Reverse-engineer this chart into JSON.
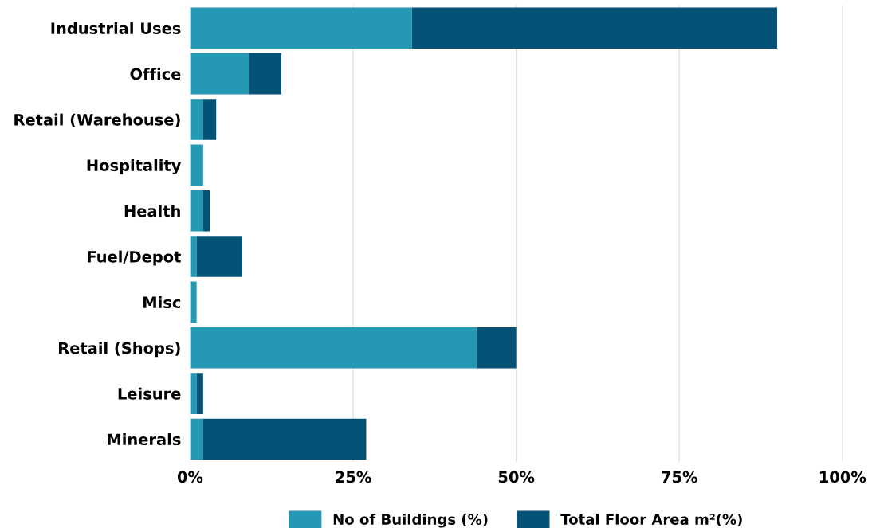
{
  "chart_data": {
    "type": "bar",
    "orientation": "horizontal",
    "stacked": true,
    "categories": [
      "Industrial Uses",
      "Office",
      "Retail (Warehouse)",
      "Hospitality",
      "Health",
      "Fuel/Depot",
      "Misc",
      "Retail (Shops)",
      "Leisure",
      "Minerals"
    ],
    "series": [
      {
        "name": "No of Buildings (%)",
        "color": "#2598b3",
        "values": [
          34,
          9,
          2,
          2,
          2,
          1,
          1,
          44,
          1,
          2
        ]
      },
      {
        "name": "Total Floor Area m²(%)",
        "color": "#045377",
        "values": [
          56,
          5,
          2,
          0,
          1,
          7,
          0,
          6,
          1,
          25
        ]
      }
    ],
    "xlim": [
      0,
      100
    ],
    "xticks": [
      {
        "value": 0,
        "label": "0%"
      },
      {
        "value": 25,
        "label": "25%"
      },
      {
        "value": 50,
        "label": "50%"
      },
      {
        "value": 75,
        "label": "75%"
      },
      {
        "value": 100,
        "label": "100%"
      }
    ],
    "grid": "x",
    "legend": "bottom"
  }
}
